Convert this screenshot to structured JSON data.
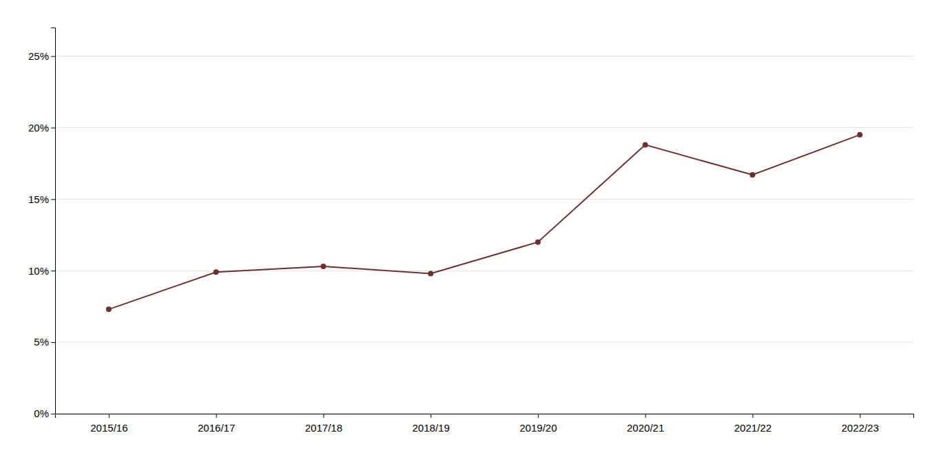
{
  "chart_data": {
    "type": "line",
    "categories": [
      "2015/16",
      "2016/17",
      "2017/18",
      "2018/19",
      "2019/20",
      "2020/21",
      "2021/22",
      "2022/23"
    ],
    "values": [
      0.073,
      0.099,
      0.103,
      0.098,
      0.12,
      0.188,
      0.167,
      0.195
    ],
    "color": "#6b3030",
    "marker": "circle",
    "ylim": [
      0,
      0.27
    ],
    "yticks": [
      {
        "value": 0.0,
        "label": "0%"
      },
      {
        "value": 0.05,
        "label": "5%"
      },
      {
        "value": 0.1,
        "label": "10%"
      },
      {
        "value": 0.15,
        "label": "15%"
      },
      {
        "value": 0.2,
        "label": "20%"
      },
      {
        "value": 0.25,
        "label": "25%"
      }
    ],
    "grid": true
  }
}
